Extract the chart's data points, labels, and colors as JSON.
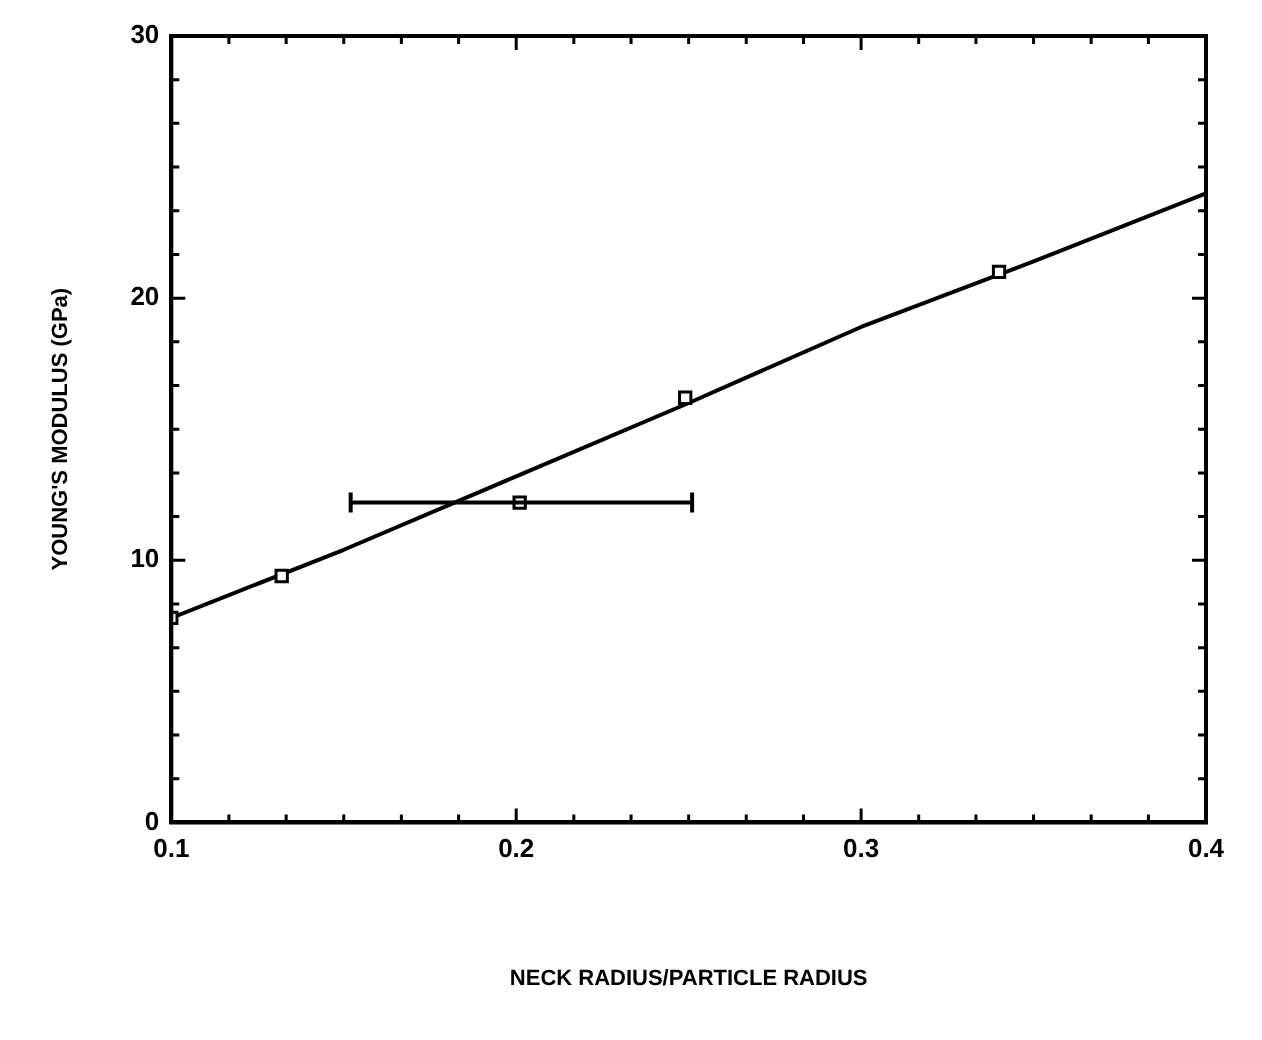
{
  "chart_data": {
    "type": "scatter",
    "xlabel": "NECK RADIUS/PARTICLE RADIUS",
    "ylabel": "YOUNG'S MODULUS (GPa)",
    "xlim": [
      0.1,
      0.4
    ],
    "ylim": [
      0,
      30
    ],
    "xticks": [
      0.1,
      {
        "value": 0.1167,
        "label": null
      },
      {
        "value": 0.1333,
        "label": null
      },
      {
        "value": 0.15,
        "label": null
      },
      {
        "value": 0.1667,
        "label": null
      },
      {
        "value": 0.1833,
        "label": null
      },
      0.2,
      {
        "value": 0.2167,
        "label": null
      },
      {
        "value": 0.2333,
        "label": null
      },
      {
        "value": 0.25,
        "label": null
      },
      {
        "value": 0.2667,
        "label": null
      },
      {
        "value": 0.2833,
        "label": null
      },
      0.3,
      {
        "value": 0.3167,
        "label": null
      },
      {
        "value": 0.3333,
        "label": null
      },
      {
        "value": 0.35,
        "label": null
      },
      {
        "value": 0.3667,
        "label": null
      },
      {
        "value": 0.3833,
        "label": null
      },
      0.4
    ],
    "yticks": [
      0,
      {
        "value": 1.667,
        "label": null
      },
      {
        "value": 3.333,
        "label": null
      },
      {
        "value": 5,
        "label": null
      },
      {
        "value": 6.667,
        "label": null
      },
      {
        "value": 8.333,
        "label": null
      },
      10,
      {
        "value": 11.667,
        "label": null
      },
      {
        "value": 13.333,
        "label": null
      },
      {
        "value": 15,
        "label": null
      },
      {
        "value": 16.667,
        "label": null
      },
      {
        "value": 18.333,
        "label": null
      },
      20,
      {
        "value": 21.667,
        "label": null
      },
      {
        "value": 23.333,
        "label": null
      },
      {
        "value": 25,
        "label": null
      },
      {
        "value": 26.667,
        "label": null
      },
      {
        "value": 28.333,
        "label": null
      },
      30
    ],
    "grid": false,
    "legend": false,
    "series": [
      {
        "type": "scatter",
        "color": "#000000",
        "marker": "square",
        "x": [
          0.1,
          0.132,
          0.201,
          0.249,
          0.34
        ],
        "values": [
          7.8,
          9.4,
          12.2,
          16.2,
          21.0
        ],
        "xerrors": [
          null,
          null,
          [
            0.152,
            0.251
          ],
          null,
          null
        ]
      },
      {
        "type": "line",
        "color": "#000000",
        "marker": "none",
        "line_style": "solid",
        "x": [
          0.1,
          0.15,
          0.2,
          0.25,
          0.3,
          0.35,
          0.4
        ],
        "values": [
          7.8,
          10.4,
          13.2,
          16.0,
          18.9,
          21.4,
          24.0
        ]
      }
    ]
  }
}
